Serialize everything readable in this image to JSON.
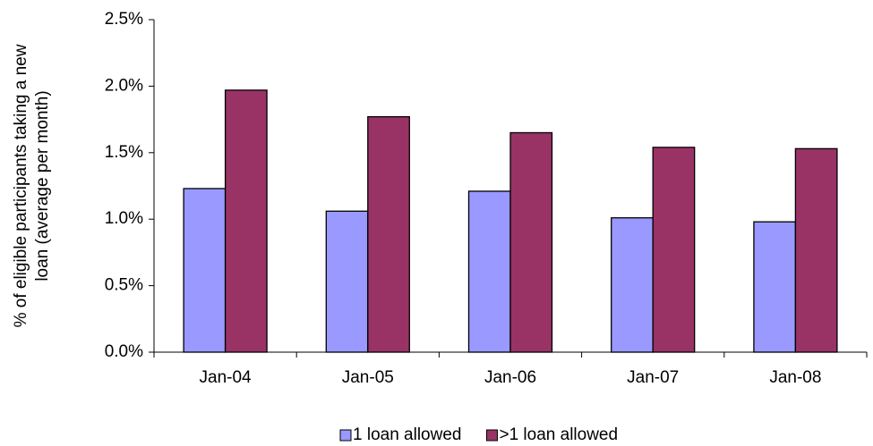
{
  "chart_data": {
    "type": "bar",
    "ylabel": [
      "% of eligible participants taking a new",
      "loan (average per month)"
    ],
    "categories": [
      "Jan-04",
      "Jan-05",
      "Jan-06",
      "Jan-07",
      "Jan-08"
    ],
    "series": [
      {
        "name": "1 loan allowed",
        "color": "#9999ff",
        "values": [
          1.23,
          1.06,
          1.21,
          1.01,
          0.98
        ]
      },
      {
        "name": ">1 loan allowed",
        "color": "#993366",
        "values": [
          1.97,
          1.77,
          1.65,
          1.54,
          1.53
        ]
      }
    ],
    "ylim": [
      0,
      2.5
    ],
    "yticks": [
      {
        "value": 0,
        "label": "0.0%"
      },
      {
        "value": 0.5,
        "label": "0.5%"
      },
      {
        "value": 1,
        "label": "1.0%"
      },
      {
        "value": 1.5,
        "label": "1.5%"
      },
      {
        "value": 2,
        "label": "2.0%"
      },
      {
        "value": 2.5,
        "label": "2.5%"
      }
    ],
    "grid": false,
    "legend": "bottom"
  }
}
